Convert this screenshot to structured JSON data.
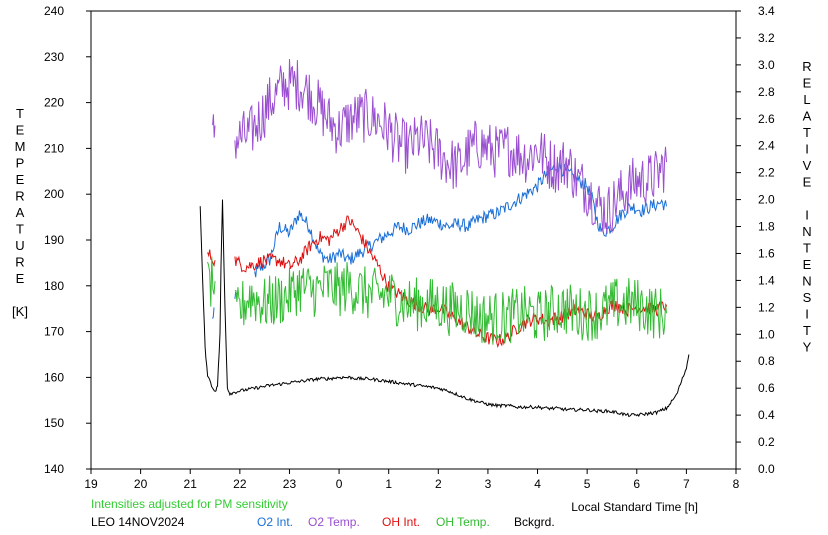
{
  "chart_data": {
    "type": "line",
    "station": "LEO 14NOV2024",
    "note": "Intensities adjusted for PM sensitivity",
    "xlabel": "Local Standard Time [h]",
    "left_axis_label": [
      "T",
      "E",
      "M",
      "P",
      "E",
      "R",
      "A",
      "T",
      "U",
      "R",
      "E",
      "",
      "[K]"
    ],
    "right_axis_label": [
      "R",
      "E",
      "L",
      "A",
      "T",
      "I",
      "V",
      "E",
      "",
      "I",
      "N",
      "T",
      "E",
      "N",
      "S",
      "I",
      "T",
      "Y"
    ],
    "x_ticks": [
      "19",
      "20",
      "21",
      "22",
      "23",
      "0",
      "1",
      "2",
      "3",
      "4",
      "5",
      "6",
      "7",
      "8"
    ],
    "left_ticks": [
      "140",
      "150",
      "160",
      "170",
      "180",
      "190",
      "200",
      "210",
      "220",
      "230",
      "240"
    ],
    "right_ticks": [
      "0.0",
      "0.2",
      "0.4",
      "0.6",
      "0.8",
      "1.0",
      "1.2",
      "1.4",
      "1.6",
      "1.8",
      "2.0",
      "2.2",
      "2.4",
      "2.6",
      "2.8",
      "3.0",
      "3.2",
      "3.4"
    ],
    "xlim": [
      19,
      32
    ],
    "ylim_left": [
      140,
      240
    ],
    "ylim_right": [
      0,
      3.4
    ],
    "series": [
      {
        "name": "O2 Int.",
        "color": "#1a6fd6",
        "axis": "right",
        "noise": 0.05,
        "segments": [
          [
            [
              21.45,
              1.1
            ],
            [
              21.48,
              1.2
            ]
          ],
          [
            [
              21.9,
              1.25
            ],
            [
              21.95,
              1.3
            ]
          ],
          [
            [
              22.3,
              1.45
            ],
            [
              22.6,
              1.55
            ],
            [
              22.8,
              1.8
            ],
            [
              23.0,
              1.75
            ],
            [
              23.2,
              1.9
            ],
            [
              23.4,
              1.8
            ],
            [
              23.6,
              1.6
            ],
            [
              23.8,
              1.55
            ],
            [
              24.0,
              1.6
            ],
            [
              24.2,
              1.55
            ],
            [
              24.4,
              1.6
            ],
            [
              24.6,
              1.65
            ],
            [
              24.8,
              1.7
            ],
            [
              25.0,
              1.75
            ],
            [
              25.2,
              1.8
            ],
            [
              25.4,
              1.78
            ],
            [
              25.6,
              1.82
            ],
            [
              25.8,
              1.85
            ],
            [
              26.0,
              1.83
            ],
            [
              26.2,
              1.8
            ],
            [
              26.4,
              1.82
            ],
            [
              26.6,
              1.8
            ],
            [
              26.8,
              1.85
            ],
            [
              27.0,
              1.88
            ],
            [
              27.2,
              1.9
            ],
            [
              27.4,
              1.95
            ],
            [
              27.6,
              2.0
            ],
            [
              27.8,
              2.05
            ],
            [
              28.0,
              2.1
            ],
            [
              28.2,
              2.2
            ],
            [
              28.4,
              2.25
            ],
            [
              28.6,
              2.2
            ],
            [
              28.8,
              2.15
            ],
            [
              29.0,
              2.1
            ],
            [
              29.1,
              2.0
            ],
            [
              29.2,
              1.85
            ],
            [
              29.3,
              1.75
            ],
            [
              29.5,
              1.8
            ],
            [
              29.7,
              1.9
            ],
            [
              29.9,
              1.95
            ],
            [
              30.1,
              1.92
            ],
            [
              30.3,
              1.95
            ],
            [
              30.5,
              1.98
            ],
            [
              30.6,
              1.95
            ]
          ]
        ]
      },
      {
        "name": "O2 Temp.",
        "color": "#9a4fd0",
        "axis": "left",
        "noise": 6,
        "segments": [
          [
            [
              21.45,
              212
            ],
            [
              21.5,
              215
            ]
          ],
          [
            [
              21.9,
              212
            ],
            [
              22.2,
              213
            ],
            [
              22.6,
              220
            ],
            [
              22.9,
              224
            ],
            [
              23.2,
              224
            ],
            [
              23.4,
              222
            ],
            [
              23.6,
              219
            ],
            [
              23.8,
              216
            ],
            [
              24.0,
              214
            ],
            [
              24.2,
              216
            ],
            [
              24.4,
              217
            ],
            [
              24.6,
              217
            ],
            [
              24.8,
              216
            ],
            [
              25.0,
              214
            ],
            [
              25.2,
              211
            ],
            [
              25.4,
              210
            ],
            [
              25.6,
              212
            ],
            [
              25.8,
              211
            ],
            [
              26.0,
              209
            ],
            [
              26.2,
              207
            ],
            [
              26.4,
              206
            ],
            [
              26.6,
              209
            ],
            [
              26.8,
              211
            ],
            [
              27.0,
              210
            ],
            [
              27.2,
              209
            ],
            [
              27.4,
              210
            ],
            [
              27.6,
              209
            ],
            [
              27.8,
              208
            ],
            [
              28.0,
              210
            ],
            [
              28.2,
              207
            ],
            [
              28.4,
              206
            ],
            [
              28.6,
              207
            ],
            [
              28.8,
              203
            ],
            [
              29.0,
              201
            ],
            [
              29.2,
              198
            ],
            [
              29.4,
              196
            ],
            [
              29.6,
              199
            ],
            [
              29.8,
              201
            ],
            [
              30.0,
              203
            ],
            [
              30.2,
              203
            ],
            [
              30.4,
              204
            ],
            [
              30.6,
              207
            ]
          ]
        ]
      },
      {
        "name": "OH Int.",
        "color": "#dd1111",
        "axis": "right",
        "noise": 0.05,
        "segments": [
          [
            [
              21.35,
              1.6
            ],
            [
              21.5,
              1.55
            ]
          ],
          [
            [
              21.9,
              1.55
            ],
            [
              22.1,
              1.5
            ],
            [
              22.3,
              1.52
            ],
            [
              22.5,
              1.55
            ],
            [
              22.8,
              1.55
            ],
            [
              23.0,
              1.5
            ],
            [
              23.2,
              1.55
            ],
            [
              23.4,
              1.65
            ],
            [
              23.6,
              1.72
            ],
            [
              23.8,
              1.7
            ],
            [
              24.0,
              1.78
            ],
            [
              24.2,
              1.85
            ],
            [
              24.4,
              1.75
            ],
            [
              24.6,
              1.62
            ],
            [
              24.8,
              1.5
            ],
            [
              25.0,
              1.35
            ],
            [
              25.2,
              1.3
            ],
            [
              25.4,
              1.25
            ],
            [
              25.6,
              1.22
            ],
            [
              25.8,
              1.18
            ],
            [
              26.0,
              1.2
            ],
            [
              26.2,
              1.15
            ],
            [
              26.4,
              1.1
            ],
            [
              26.6,
              1.05
            ],
            [
              26.8,
              1.0
            ],
            [
              27.0,
              0.97
            ],
            [
              27.2,
              0.95
            ],
            [
              27.4,
              0.98
            ],
            [
              27.6,
              1.05
            ],
            [
              27.8,
              1.1
            ],
            [
              28.0,
              1.12
            ],
            [
              28.2,
              1.1
            ],
            [
              28.4,
              1.12
            ],
            [
              28.6,
              1.15
            ],
            [
              28.8,
              1.18
            ],
            [
              29.0,
              1.15
            ],
            [
              29.2,
              1.12
            ],
            [
              29.4,
              1.2
            ],
            [
              29.6,
              1.22
            ],
            [
              29.8,
              1.18
            ],
            [
              30.0,
              1.2
            ],
            [
              30.2,
              1.2
            ],
            [
              30.4,
              1.18
            ],
            [
              30.6,
              1.22
            ]
          ]
        ]
      },
      {
        "name": "OH Temp.",
        "color": "#33bb33",
        "axis": "left",
        "noise": 6,
        "segments": [
          [
            [
              21.35,
              180
            ],
            [
              21.5,
              181
            ]
          ],
          [
            [
              21.9,
              173
            ],
            [
              22.2,
              178
            ],
            [
              22.5,
              176
            ],
            [
              22.8,
              177
            ],
            [
              23.0,
              178
            ],
            [
              23.2,
              180
            ],
            [
              23.4,
              179
            ],
            [
              23.6,
              179
            ],
            [
              23.8,
              180
            ],
            [
              24.0,
              179
            ],
            [
              24.2,
              180
            ],
            [
              24.4,
              179
            ],
            [
              24.6,
              178
            ],
            [
              24.8,
              178
            ],
            [
              25.0,
              178
            ],
            [
              25.2,
              177
            ],
            [
              25.4,
              176
            ],
            [
              25.6,
              176
            ],
            [
              25.8,
              176
            ],
            [
              26.0,
              176
            ],
            [
              26.2,
              175
            ],
            [
              26.4,
              175
            ],
            [
              26.6,
              175
            ],
            [
              26.8,
              173
            ],
            [
              27.0,
              173
            ],
            [
              27.2,
              173
            ],
            [
              27.4,
              173
            ],
            [
              27.6,
              174
            ],
            [
              27.8,
              174
            ],
            [
              28.0,
              173
            ],
            [
              28.2,
              174
            ],
            [
              28.4,
              175
            ],
            [
              28.6,
              175
            ],
            [
              28.8,
              174
            ],
            [
              29.0,
              174
            ],
            [
              29.2,
              174
            ],
            [
              29.4,
              175
            ],
            [
              29.6,
              176
            ],
            [
              29.8,
              176
            ],
            [
              30.0,
              176
            ],
            [
              30.2,
              175
            ],
            [
              30.4,
              174
            ],
            [
              30.6,
              174
            ]
          ]
        ]
      },
      {
        "name": "Bckgrd.",
        "color": "#000000",
        "axis": "right",
        "noise": 0.012,
        "segments": [
          [
            [
              21.2,
              1.95
            ],
            [
              21.25,
              1.4
            ],
            [
              21.3,
              0.9
            ],
            [
              21.35,
              0.7
            ],
            [
              21.45,
              0.6
            ],
            [
              21.52,
              0.58
            ],
            [
              21.55,
              0.62
            ],
            [
              21.6,
              1.0
            ],
            [
              21.62,
              1.5
            ],
            [
              21.65,
              2.0
            ]
          ],
          [
            [
              21.65,
              2.0
            ],
            [
              21.7,
              1.2
            ],
            [
              21.75,
              0.6
            ],
            [
              21.8,
              0.56
            ],
            [
              22.0,
              0.58
            ],
            [
              22.3,
              0.6
            ],
            [
              22.6,
              0.62
            ],
            [
              22.8,
              0.63
            ],
            [
              23.0,
              0.64
            ],
            [
              23.2,
              0.65
            ],
            [
              23.4,
              0.66
            ],
            [
              23.6,
              0.67
            ],
            [
              23.8,
              0.67
            ],
            [
              24.0,
              0.68
            ],
            [
              24.2,
              0.68
            ],
            [
              24.4,
              0.67
            ],
            [
              24.6,
              0.67
            ],
            [
              24.8,
              0.66
            ],
            [
              25.0,
              0.65
            ],
            [
              25.2,
              0.64
            ],
            [
              25.4,
              0.63
            ],
            [
              25.6,
              0.62
            ],
            [
              25.8,
              0.61
            ],
            [
              26.0,
              0.6
            ],
            [
              26.2,
              0.58
            ],
            [
              26.4,
              0.55
            ],
            [
              26.6,
              0.52
            ],
            [
              26.8,
              0.5
            ],
            [
              27.0,
              0.48
            ],
            [
              27.2,
              0.47
            ],
            [
              27.4,
              0.47
            ],
            [
              27.6,
              0.46
            ],
            [
              27.8,
              0.46
            ],
            [
              28.0,
              0.46
            ],
            [
              28.2,
              0.45
            ],
            [
              28.4,
              0.45
            ],
            [
              28.6,
              0.44
            ],
            [
              28.8,
              0.44
            ],
            [
              29.0,
              0.44
            ],
            [
              29.2,
              0.43
            ],
            [
              29.4,
              0.43
            ],
            [
              29.6,
              0.42
            ],
            [
              29.8,
              0.4
            ],
            [
              30.0,
              0.4
            ],
            [
              30.2,
              0.41
            ],
            [
              30.4,
              0.42
            ],
            [
              30.6,
              0.45
            ],
            [
              30.8,
              0.55
            ],
            [
              30.9,
              0.65
            ],
            [
              31.0,
              0.75
            ],
            [
              31.05,
              0.85
            ]
          ]
        ]
      }
    ]
  }
}
